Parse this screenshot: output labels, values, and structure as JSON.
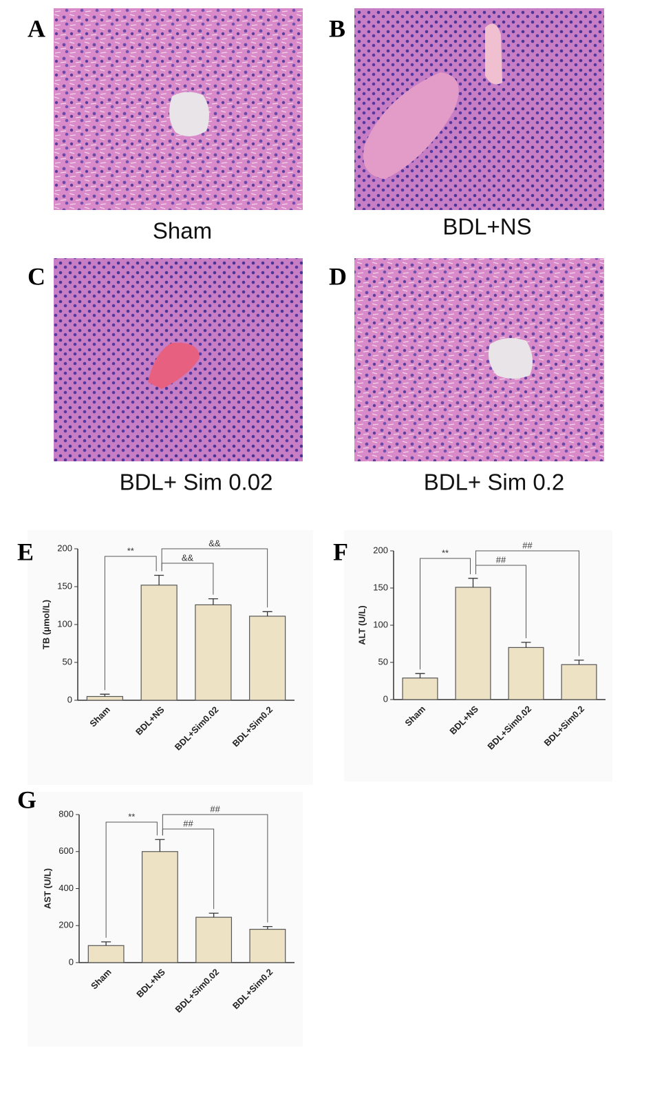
{
  "photos": [
    {
      "letter": "A",
      "caption": "Sham"
    },
    {
      "letter": "B",
      "caption": "BDL+NS"
    },
    {
      "letter": "C",
      "caption": "BDL+ Sim 0.02"
    },
    {
      "letter": "D",
      "caption": "BDL+ Sim 0.2"
    }
  ],
  "chart_data": [
    {
      "type": "bar",
      "panel": "E",
      "ylabel": "TB (μmol/L)",
      "categories": [
        "Sham",
        "BDL+NS",
        "BDL+Sim0.02",
        "BDL+Sim0.2"
      ],
      "values": [
        5,
        152,
        126,
        111
      ],
      "errors": [
        3,
        13,
        8,
        6
      ],
      "color": "#ede3c4",
      "ylim": [
        0,
        200
      ],
      "yticks": [
        0,
        50,
        100,
        150,
        200
      ],
      "annotations": [
        "**",
        "&&",
        "&&"
      ]
    },
    {
      "type": "bar",
      "panel": "F",
      "ylabel": "ALT (U/L)",
      "categories": [
        "Sham",
        "BDL+NS",
        "BDL+Sim0.02",
        "BDL+Sim0.2"
      ],
      "values": [
        29,
        151,
        70,
        47
      ],
      "errors": [
        6,
        12,
        7,
        6
      ],
      "color": "#ede3c4",
      "ylim": [
        0,
        200
      ],
      "yticks": [
        0,
        50,
        100,
        150,
        200
      ],
      "annotations": [
        "**",
        "##",
        "##"
      ]
    },
    {
      "type": "bar",
      "panel": "G",
      "ylabel": "AST (U/L)",
      "categories": [
        "Sham",
        "BDL+NS",
        "BDL+Sim0.02",
        "BDL+Sim0.2"
      ],
      "values": [
        92,
        600,
        245,
        180
      ],
      "errors": [
        20,
        65,
        22,
        15
      ],
      "color": "#ede3c4",
      "ylim": [
        0,
        800
      ],
      "yticks": [
        0,
        200,
        400,
        600,
        800
      ],
      "annotations": [
        "**",
        "##",
        "##"
      ]
    }
  ]
}
